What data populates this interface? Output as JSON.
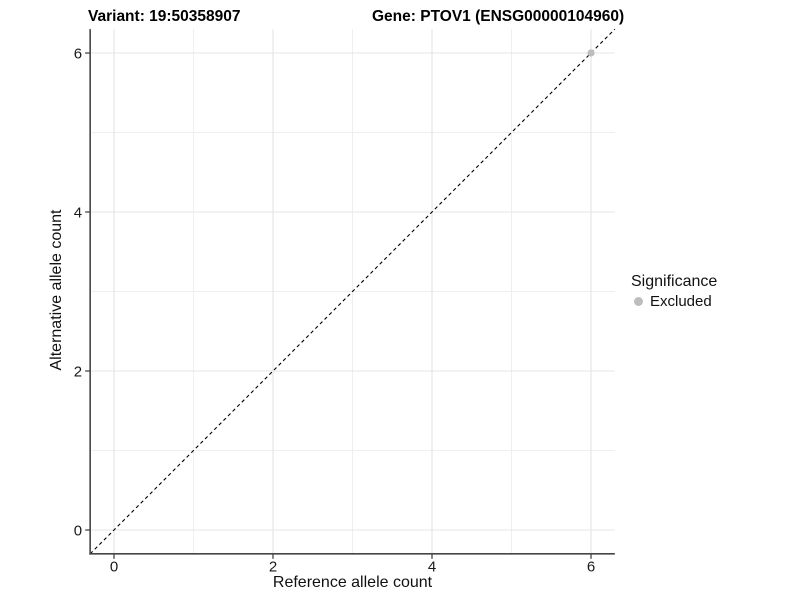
{
  "chart_data": {
    "type": "scatter",
    "title_left": "Variant: 19:50358907",
    "title_right": "Gene: PTOV1 (ENSG00000104960)",
    "xlabel": "Reference allele count",
    "ylabel": "Alternative allele count",
    "xlim": [
      -0.3,
      6.3
    ],
    "ylim": [
      -0.3,
      6.3
    ],
    "xticks": [
      0,
      2,
      4,
      6
    ],
    "yticks": [
      0,
      2,
      4,
      6
    ],
    "minor_xticks": [
      1,
      3,
      5
    ],
    "minor_yticks": [
      1,
      3,
      5
    ],
    "grid": "on",
    "points": [
      {
        "x": 6,
        "y": 6,
        "series": "Excluded"
      }
    ],
    "reference_line": {
      "type": "identity",
      "slope": 1,
      "intercept": 0,
      "style": "dashed",
      "color": "#000000"
    },
    "legend": {
      "position": "right",
      "title": "Significance",
      "items": [
        {
          "label": "Excluded",
          "color": "#bdbdbd",
          "marker": "circle"
        }
      ]
    }
  },
  "colors": {
    "background": "#ffffff",
    "grid_major": "#e4e4e4",
    "grid_minor": "#efefef",
    "axis_line": "#464646",
    "tick_text": "#1a1a1a",
    "title_text": "#000000",
    "point_excluded": "#bdbdbd"
  }
}
